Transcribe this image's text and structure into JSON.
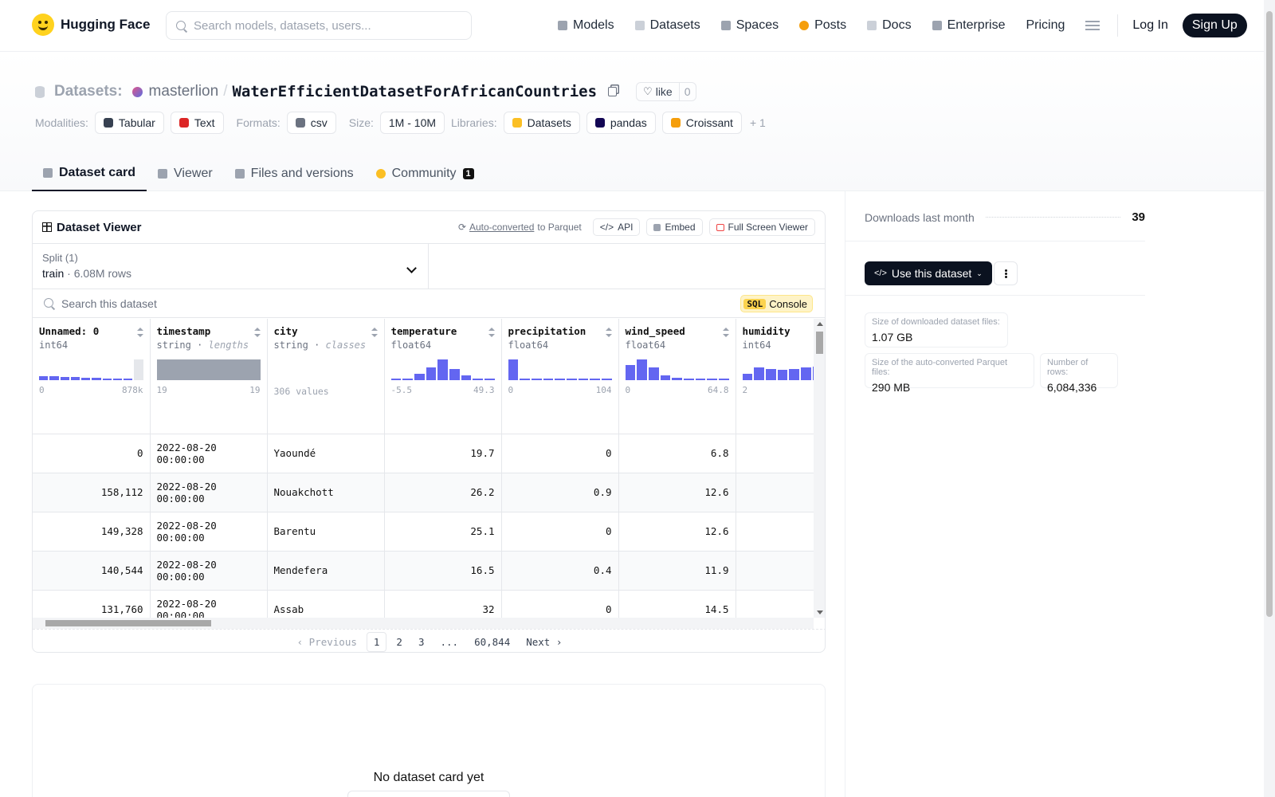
{
  "header": {
    "logo_text": "Hugging Face",
    "search_placeholder": "Search models, datasets, users...",
    "nav": [
      {
        "label": "Models",
        "icon": "cube-icon",
        "color": "#9ca3af"
      },
      {
        "label": "Datasets",
        "icon": "database-icon",
        "color": "#cbd0d8"
      },
      {
        "label": "Spaces",
        "icon": "grid-icon",
        "color": "#9ca3af"
      },
      {
        "label": "Posts",
        "icon": "chat-icon",
        "color": "#f59e0b"
      },
      {
        "label": "Docs",
        "icon": "doc-icon",
        "color": "#cbd0d8"
      },
      {
        "label": "Enterprise",
        "icon": "enterprise-icon",
        "color": "#9ca3af"
      },
      {
        "label": "Pricing",
        "icon": "",
        "color": ""
      }
    ],
    "login": "Log In",
    "signup": "Sign Up"
  },
  "repo": {
    "type_label": "Datasets:",
    "owner": "masterlion",
    "slash": "/",
    "name": "WaterEfficientDatasetForAfricanCountries",
    "like_label": "like",
    "like_count": "0",
    "modalities_label": "Modalities:",
    "modalities": [
      "Tabular",
      "Text"
    ],
    "formats_label": "Formats:",
    "formats": [
      "csv"
    ],
    "size_label": "Size:",
    "size": "1M - 10M",
    "libraries_label": "Libraries:",
    "libraries": [
      "Datasets",
      "pandas",
      "Croissant"
    ],
    "libraries_more": "+ 1"
  },
  "tabs": [
    {
      "label": "Dataset card",
      "active": true
    },
    {
      "label": "Viewer",
      "active": false
    },
    {
      "label": "Files and versions",
      "active": false
    },
    {
      "label": "Community",
      "active": false,
      "badge": "1"
    }
  ],
  "viewer": {
    "title": "Dataset Viewer",
    "auto_converted": "Auto-converted",
    "to_parquet": "to Parquet",
    "api": "API",
    "embed": "Embed",
    "fullscreen": "Full Screen Viewer",
    "split_label": "Split (1)",
    "split_name": "train",
    "split_dot": "·",
    "split_rows": "6.08M rows",
    "search_placeholder": "Search this dataset",
    "sql_badge": "SQL",
    "sql_label": "Console",
    "columns": [
      {
        "name": "Unnamed: 0",
        "type": "int64",
        "kind": "",
        "hist": [
          0.2,
          0.18,
          0.15,
          0.14,
          0.12,
          0.1,
          0.08,
          0.05,
          0.03
        ],
        "hist_last_gray": 1.0,
        "min": "0",
        "max": "878k"
      },
      {
        "name": "timestamp",
        "type": "string",
        "kind": "lengths",
        "hist_gray_full": true,
        "min": "19",
        "max": "19"
      },
      {
        "name": "city",
        "type": "string",
        "kind": "classes",
        "classes": "306 values"
      },
      {
        "name": "temperature",
        "type": "float64",
        "kind": "",
        "hist": [
          0.05,
          0.08,
          0.3,
          0.6,
          1.0,
          0.55,
          0.22,
          0.08,
          0.05
        ],
        "min": "-5.5",
        "max": "49.3"
      },
      {
        "name": "precipitation",
        "type": "float64",
        "kind": "",
        "hist": [
          1.0,
          0.05,
          0.04,
          0.03,
          0.03,
          0.03,
          0.03,
          0.03,
          0.03
        ],
        "min": "0",
        "max": "104"
      },
      {
        "name": "wind_speed",
        "type": "float64",
        "kind": "",
        "hist": [
          0.75,
          1.0,
          0.6,
          0.25,
          0.1,
          0.05,
          0.04,
          0.03,
          0.03
        ],
        "min": "0",
        "max": "64.8"
      },
      {
        "name": "humidity",
        "type": "int64",
        "kind": "",
        "hist": [
          0.3,
          0.6,
          0.55,
          0.5,
          0.55,
          0.6,
          0.65,
          0.8,
          0.9
        ],
        "min": "2",
        "max": ""
      }
    ],
    "rows": [
      [
        "0",
        "2022-08-20 00:00:00",
        "Yaoundé",
        "19.7",
        "0",
        "6.8",
        ""
      ],
      [
        "158,112",
        "2022-08-20 00:00:00",
        "Nouakchott",
        "26.2",
        "0.9",
        "12.6",
        ""
      ],
      [
        "149,328",
        "2022-08-20 00:00:00",
        "Barentu",
        "25.1",
        "0",
        "12.6",
        ""
      ],
      [
        "140,544",
        "2022-08-20 00:00:00",
        "Mendefera",
        "16.5",
        "0.4",
        "11.9",
        ""
      ],
      [
        "131,760",
        "2022-08-20 00:00:00",
        "Assab",
        "32",
        "0",
        "14.5",
        ""
      ]
    ],
    "pager": {
      "prev": "Previous",
      "pages": [
        "1",
        "2",
        "3",
        "...",
        "60,844"
      ],
      "next": "Next",
      "current": "1"
    }
  },
  "card": {
    "empty": "No dataset card yet"
  },
  "sidebar": {
    "downloads_label": "Downloads last month",
    "downloads": "39",
    "use_dataset": "Use this dataset",
    "stats": [
      {
        "label": "Size of downloaded dataset files:",
        "value": "1.07 GB"
      },
      {
        "label": "Size of the auto-converted Parquet files:",
        "value": "290 MB"
      },
      {
        "label": "Number of rows:",
        "value": "6,084,336"
      }
    ]
  }
}
